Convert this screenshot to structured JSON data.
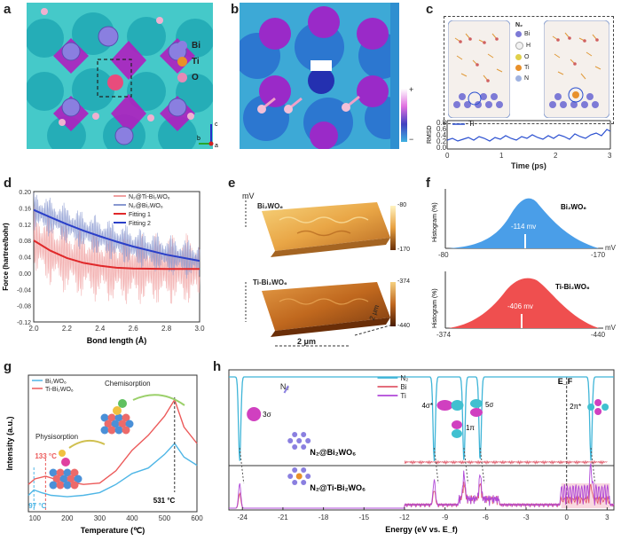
{
  "panels": {
    "a": {
      "label": "a",
      "legend": [
        {
          "name": "Bi",
          "color": "#8a7fe0"
        },
        {
          "name": "Ti",
          "color": "#e8902a"
        },
        {
          "name": "O",
          "color": "#e58ab6"
        }
      ],
      "axes": {
        "c": "c",
        "b": "b",
        "a": "a"
      }
    },
    "b": {
      "label": "b",
      "scale_plus": "+",
      "scale_minus": "−"
    },
    "c": {
      "label": "c",
      "legend_title": "N₂",
      "legend": [
        {
          "name": "Bi",
          "color": "#7d7ad6"
        },
        {
          "name": "H",
          "color": "#f2f2f2"
        },
        {
          "name": "O",
          "color": "#e0d04a"
        },
        {
          "name": "Ti",
          "color": "#e8902a"
        },
        {
          "name": "N",
          "color": "#9fb2e0"
        }
      ],
      "series_label": "Ti",
      "ylabel": "RMSD",
      "xlabel": "Time (ps)",
      "yticks": [
        "0.0",
        "0.2",
        "0.4",
        "0.6",
        "0.8"
      ],
      "xticks": [
        "0",
        "1",
        "2",
        "3"
      ]
    },
    "d": {
      "label": "d"
    },
    "e": {
      "label": "e",
      "unit": "mV",
      "top_title": "Bi₂WO₆",
      "top_max": "-80",
      "top_min": "-170",
      "bottom_title": "Ti-Bi₂WO₆",
      "bottom_max": "-374",
      "bottom_min": "-440",
      "scale_x": "2 μm",
      "scale_y": "2 μm"
    },
    "f": {
      "label": "f",
      "ylabel": "Histogram (%)",
      "xunit": "mV",
      "top_title": "Bi₂WO₆",
      "top_value": "-114 mv",
      "top_min": "-80",
      "top_max": "-170",
      "bottom_title": "Ti-Bi₂WO₆",
      "bottom_value": "-406 mv",
      "bottom_min": "-374",
      "bottom_max": "-440"
    },
    "g": {
      "label": "g",
      "chemisorption": "Chemisorption",
      "physisorption": "Physisorption",
      "ann_133": "133 °C",
      "ann_97": "97 °C",
      "ann_531": "531 °C"
    },
    "h": {
      "label": "h",
      "n2_top": "N₂",
      "orbitals": [
        "3σ",
        "4σ*",
        "5σ",
        "1π",
        "2π*"
      ],
      "ef": "E_F",
      "top_title": "N₂@Bi₂WO₆",
      "bottom_title": "N₂@Ti-Bi₂WO₆"
    }
  },
  "chart_data": [
    {
      "type": "line",
      "panel": "d",
      "xlabel": "Bond length (Å)",
      "ylabel": "Force (hartree/bohr)",
      "xlim": [
        2.0,
        3.0
      ],
      "ylim": [
        -0.12,
        0.2
      ],
      "xticks": [
        "2.0",
        "2.2",
        "2.4",
        "2.6",
        "2.8",
        "3.0"
      ],
      "yticks": [
        "-0.12",
        "-0.08",
        "-0.04",
        "0.00",
        "0.04",
        "0.08",
        "0.12",
        "0.16",
        "0.20"
      ],
      "series": [
        {
          "name": "N₂@Ti-Bi₂WO₆",
          "color": "#f0a0a0",
          "kind": "oscillating",
          "amplitude": 0.09
        },
        {
          "name": "N₂@Bi₂WO₆",
          "color": "#8898d0",
          "kind": "oscillating",
          "amplitude": 0.05
        },
        {
          "name": "Fitting 1",
          "color": "#e0282a",
          "x": [
            2.0,
            2.1,
            2.2,
            2.3,
            2.4,
            2.5,
            2.6,
            2.8,
            3.0
          ],
          "y": [
            0.08,
            0.055,
            0.037,
            0.025,
            0.018,
            0.013,
            0.011,
            0.01,
            0.01
          ]
        },
        {
          "name": "Fitting 2",
          "color": "#2a3fc8",
          "x": [
            2.0,
            2.1,
            2.2,
            2.3,
            2.4,
            2.5,
            2.6,
            2.8,
            3.0
          ],
          "y": [
            0.155,
            0.137,
            0.12,
            0.104,
            0.09,
            0.077,
            0.065,
            0.045,
            0.03
          ]
        }
      ]
    },
    {
      "type": "line",
      "panel": "g",
      "xlabel": "Temperature (℃)",
      "ylabel": "Intensity (a.u.)",
      "xlim": [
        80,
        600
      ],
      "xticks": [
        "100",
        "200",
        "300",
        "400",
        "500",
        "600"
      ],
      "series": [
        {
          "name": "Bi₂WO₆",
          "color": "#4fb6e6",
          "x": [
            80,
            97,
            120,
            150,
            200,
            250,
            300,
            350,
            400,
            450,
            500,
            531,
            560,
            600
          ],
          "y": [
            0.12,
            0.16,
            0.14,
            0.12,
            0.11,
            0.12,
            0.14,
            0.2,
            0.28,
            0.32,
            0.42,
            0.5,
            0.4,
            0.34
          ]
        },
        {
          "name": "Ti-Bi₂WO₆",
          "color": "#ec5a5a",
          "x": [
            80,
            100,
            133,
            160,
            200,
            250,
            300,
            350,
            400,
            450,
            500,
            531,
            560,
            600
          ],
          "y": [
            0.2,
            0.24,
            0.26,
            0.24,
            0.22,
            0.2,
            0.21,
            0.3,
            0.45,
            0.56,
            0.7,
            0.82,
            0.62,
            0.5
          ]
        }
      ]
    },
    {
      "type": "line",
      "panel": "h",
      "xlabel": "Energy (eV vs. E_f)",
      "xlim": [
        -25,
        3.5
      ],
      "xticks": [
        "-24",
        "-21",
        "-18",
        "-15",
        "-12",
        "-9",
        "-6",
        "-3",
        "0",
        "3"
      ],
      "series": [
        {
          "name": "N₂",
          "color": "#3fb5d8"
        },
        {
          "name": "Bi",
          "color": "#e05a6a"
        },
        {
          "name": "Ti",
          "color": "#b048d8"
        }
      ],
      "peaks_eV": [
        -24.2,
        -9.8,
        -7.6,
        -6.4,
        1.8
      ]
    }
  ]
}
